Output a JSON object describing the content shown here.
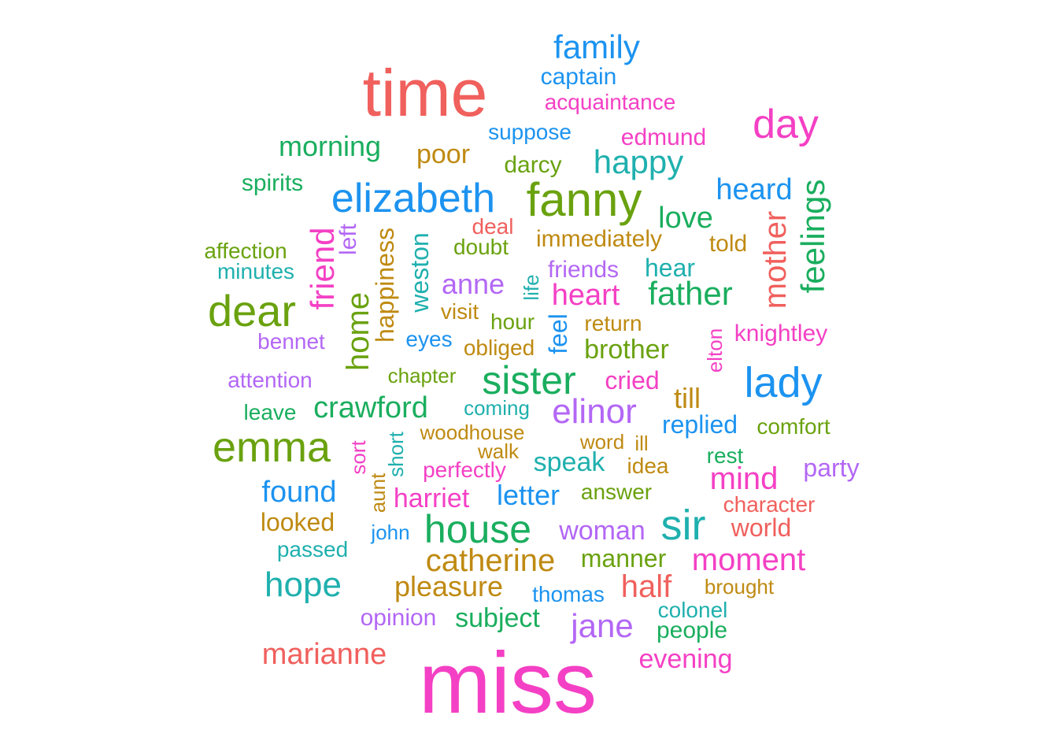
{
  "palette": {
    "red": "#F0605D",
    "pink": "#F440C4",
    "blue": "#1C93F0",
    "teal": "#1FB0AE",
    "green": "#1AAE5E",
    "olive": "#6AA20F",
    "gold": "#BF8A12",
    "purple": "#B367F5"
  },
  "words": [
    "miss",
    "time",
    "fanny",
    "emma",
    "dear",
    "elizabeth",
    "sister",
    "lady",
    "house",
    "day",
    "sir",
    "family",
    "happy",
    "elinor",
    "catherine",
    "heard",
    "mind",
    "father",
    "love",
    "hope",
    "friend",
    "mother",
    "feelings",
    "home",
    "crawford",
    "morning",
    "found",
    "moment",
    "jane",
    "half",
    "marianne",
    "evening",
    "pleasure",
    "heart",
    "anne",
    "brother",
    "harriet",
    "letter",
    "speak",
    "woman",
    "poor",
    "darcy",
    "captain",
    "edmund",
    "suppose",
    "acquaintance",
    "weston",
    "happiness",
    "looked",
    "knightley",
    "world",
    "subject",
    "manner",
    "people",
    "spirits",
    "affection",
    "minutes",
    "immediately",
    "hear",
    "friends",
    "told",
    "cried",
    "replied",
    "comfort",
    "till",
    "left",
    "deal",
    "doubt",
    "life",
    "feel",
    "visit",
    "hour",
    "return",
    "eyes",
    "obliged",
    "bennet",
    "attention",
    "chapter",
    "coming",
    "woodhouse",
    "walk",
    "word",
    "ill",
    "idea",
    "rest",
    "party",
    "character",
    "perfectly",
    "answer",
    "leave",
    "sort",
    "short",
    "aunt",
    "john",
    "passed",
    "thomas",
    "colonel",
    "opinion",
    "brought",
    "elton"
  ]
}
